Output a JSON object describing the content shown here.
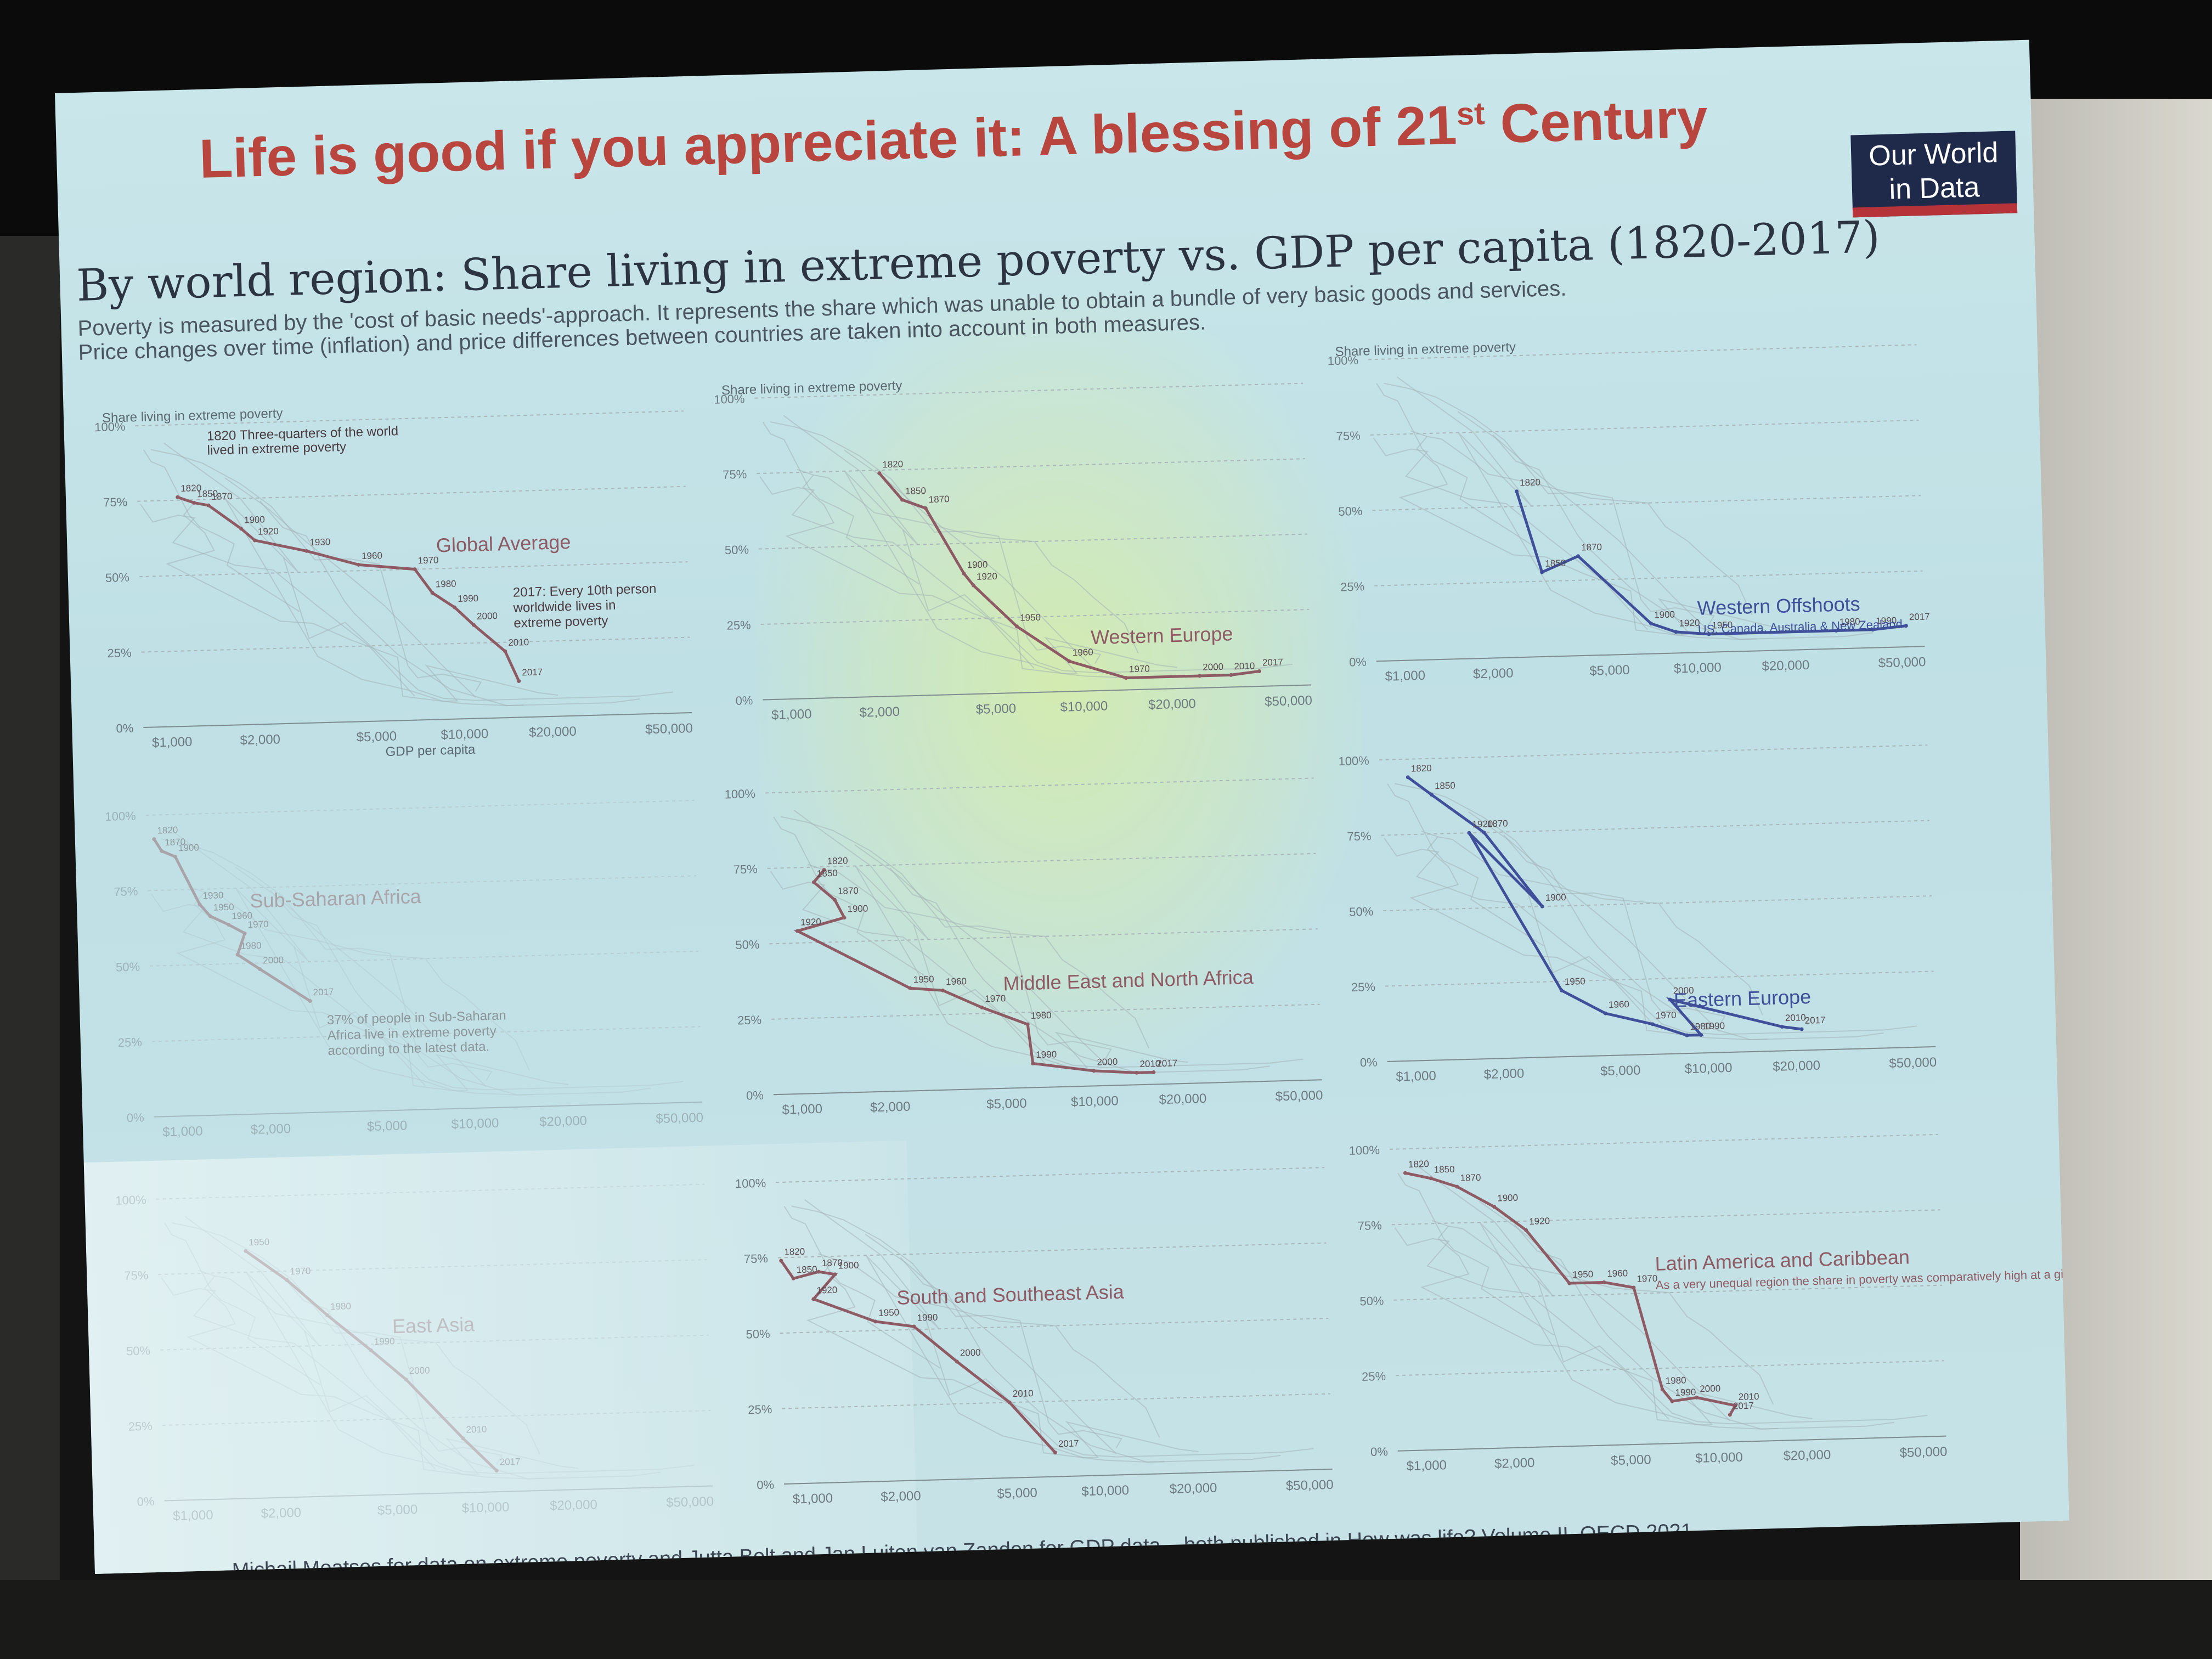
{
  "slide_title": "Life is good if you appreciate it: A blessing of 21",
  "slide_title_sup": "st",
  "slide_title_end": " Century",
  "logo_line1": "Our World",
  "logo_line2": "in Data",
  "chart_title": "By world region: Share living in extreme poverty vs. GDP per capita (1820-2017)",
  "subtitle_line1": "Poverty is measured by the 'cost of basic needs'-approach. It represents the share which was unable to obtain a bundle of very basic goods and services.",
  "subtitle_line2": "Price changes over time (inflation) and price differences between countries are taken into account in both measures.",
  "footer": "Michail Moatsos for data on extreme poverty and Jutta Bolt and Jan Luiten van Zanden for GDP data – both published in How was life? Volume II, OECD 2021.",
  "colors": {
    "title_red": "#b8463f",
    "line": "#8e5a63",
    "blue_line": "#3f4f9a",
    "axis": "#8a9499"
  },
  "chart_data": [
    {
      "type": "line",
      "region": "Global Average",
      "y_axis_title": "Share living in extreme poverty",
      "xlabel": "GDP per capita",
      "xscale": "log",
      "xlim": [
        800,
        60000
      ],
      "ylim": [
        0,
        100
      ],
      "y_ticks": [
        "0%",
        "25%",
        "50%",
        "75%",
        "100%"
      ],
      "x_ticks": [
        "$1,000",
        "$2,000",
        "$5,000",
        "$10,000",
        "$20,000",
        "$50,000"
      ],
      "annotations": [
        "1820 Three-quarters of the world",
        "lived in extreme poverty",
        "2017: Every 10th person",
        "worldwide lives in",
        "extreme poverty"
      ],
      "points": [
        {
          "year": "1820",
          "x": 1100,
          "y": 76
        },
        {
          "year": "1850",
          "x": 1250,
          "y": 74
        },
        {
          "year": "1870",
          "x": 1400,
          "y": 73
        },
        {
          "year": "1900",
          "x": 1800,
          "y": 65
        },
        {
          "year": "1920",
          "x": 2000,
          "y": 61
        },
        {
          "year": "1930",
          "x": 3000,
          "y": 57
        },
        {
          "year": "1960",
          "x": 4500,
          "y": 52
        },
        {
          "year": "1970",
          "x": 7000,
          "y": 50
        },
        {
          "year": "1980",
          "x": 8000,
          "y": 42
        },
        {
          "year": "1990",
          "x": 9500,
          "y": 37
        },
        {
          "year": "2000",
          "x": 11000,
          "y": 31
        },
        {
          "year": "2010",
          "x": 14000,
          "y": 22
        },
        {
          "year": "2017",
          "x": 15500,
          "y": 12
        }
      ]
    },
    {
      "type": "line",
      "region": "Western Europe",
      "y_axis_title": "Share living in extreme poverty",
      "xscale": "log",
      "xlim": [
        800,
        60000
      ],
      "ylim": [
        0,
        100
      ],
      "y_ticks": [
        "0%",
        "25%",
        "50%",
        "75%",
        "100%"
      ],
      "x_ticks": [
        "$1,000",
        "$2,000",
        "$5,000",
        "$10,000",
        "$20,000",
        "$50,000"
      ],
      "points": [
        {
          "year": "1820",
          "x": 2100,
          "y": 74
        },
        {
          "year": "1850",
          "x": 2500,
          "y": 65
        },
        {
          "year": "1870",
          "x": 3000,
          "y": 62
        },
        {
          "year": "1900",
          "x": 4000,
          "y": 40
        },
        {
          "year": "1920",
          "x": 4300,
          "y": 36
        },
        {
          "year": "1950",
          "x": 6000,
          "y": 22
        },
        {
          "year": "1960",
          "x": 9000,
          "y": 10
        },
        {
          "year": "1970",
          "x": 14000,
          "y": 4
        },
        {
          "year": "2000",
          "x": 25000,
          "y": 4
        },
        {
          "year": "2010",
          "x": 32000,
          "y": 4
        },
        {
          "year": "2017",
          "x": 40000,
          "y": 5
        }
      ]
    },
    {
      "type": "line",
      "region": "Western Offshoots",
      "region_note": "US, Canada, Australia & New Zealand",
      "y_axis_title": "Share living in extreme poverty",
      "xscale": "log",
      "xlim": [
        800,
        60000
      ],
      "ylim": [
        0,
        100
      ],
      "y_ticks": [
        "0%",
        "25%",
        "50%",
        "75%",
        "100%"
      ],
      "x_ticks": [
        "$1,000",
        "$2,000",
        "$5,000",
        "$10,000",
        "$20,000",
        "$50,000"
      ],
      "points": [
        {
          "year": "1820",
          "x": 2500,
          "y": 55
        },
        {
          "year": "1850",
          "x": 3000,
          "y": 28
        },
        {
          "year": "1870",
          "x": 4000,
          "y": 33
        },
        {
          "year": "1900",
          "x": 7000,
          "y": 10
        },
        {
          "year": "1920",
          "x": 8500,
          "y": 7
        },
        {
          "year": "1950",
          "x": 11000,
          "y": 6
        },
        {
          "year": "1980",
          "x": 30000,
          "y": 6
        },
        {
          "year": "1990",
          "x": 40000,
          "y": 6
        },
        {
          "year": "2017",
          "x": 52000,
          "y": 7
        }
      ]
    },
    {
      "type": "line",
      "region": "Sub-Saharan Africa",
      "xscale": "log",
      "xlim": [
        800,
        60000
      ],
      "ylim": [
        0,
        100
      ],
      "y_ticks": [
        "0%",
        "25%",
        "50%",
        "75%",
        "100%"
      ],
      "x_ticks": [
        "$1,000",
        "$2,000",
        "$5,000",
        "$10,000",
        "$20,000",
        "$50,000"
      ],
      "annotations": [
        "37% of people in Sub-Saharan",
        "Africa live in extreme poverty",
        "according to the latest data."
      ],
      "points": [
        {
          "year": "1820",
          "x": 850,
          "y": 92
        },
        {
          "year": "1870",
          "x": 900,
          "y": 88
        },
        {
          "year": "1900",
          "x": 1000,
          "y": 86
        },
        {
          "year": "1930",
          "x": 1200,
          "y": 70
        },
        {
          "year": "1950",
          "x": 1300,
          "y": 66
        },
        {
          "year": "1960",
          "x": 1500,
          "y": 63
        },
        {
          "year": "1970",
          "x": 1700,
          "y": 60
        },
        {
          "year": "1980",
          "x": 1600,
          "y": 53
        },
        {
          "year": "2000",
          "x": 1900,
          "y": 48
        },
        {
          "year": "2017",
          "x": 2800,
          "y": 37
        }
      ]
    },
    {
      "type": "line",
      "region": "Middle East and North Africa",
      "xscale": "log",
      "xlim": [
        800,
        60000
      ],
      "ylim": [
        0,
        100
      ],
      "y_ticks": [
        "0%",
        "25%",
        "50%",
        "75%",
        "100%"
      ],
      "x_ticks": [
        "$1,000",
        "$2,000",
        "$5,000",
        "$10,000",
        "$20,000",
        "$50,000"
      ],
      "points": [
        {
          "year": "1820",
          "x": 1250,
          "y": 74
        },
        {
          "year": "1850",
          "x": 1150,
          "y": 70
        },
        {
          "year": "1870",
          "x": 1350,
          "y": 64
        },
        {
          "year": "1900",
          "x": 1450,
          "y": 58
        },
        {
          "year": "1920",
          "x": 1000,
          "y": 54
        },
        {
          "year": "1950",
          "x": 2400,
          "y": 34
        },
        {
          "year": "1960",
          "x": 3100,
          "y": 33
        },
        {
          "year": "1970",
          "x": 4200,
          "y": 27
        },
        {
          "year": "1980",
          "x": 6000,
          "y": 21
        },
        {
          "year": "1990",
          "x": 6200,
          "y": 8
        },
        {
          "year": "2000",
          "x": 10000,
          "y": 5
        },
        {
          "year": "2010",
          "x": 14000,
          "y": 4
        },
        {
          "year": "2017",
          "x": 16000,
          "y": 4
        }
      ]
    },
    {
      "type": "line",
      "region": "Eastern Europe",
      "xscale": "log",
      "xlim": [
        800,
        60000
      ],
      "ylim": [
        0,
        100
      ],
      "y_ticks": [
        "0%",
        "25%",
        "50%",
        "75%",
        "100%"
      ],
      "x_ticks": [
        "$1,000",
        "$2,000",
        "$5,000",
        "$10,000",
        "$20,000",
        "$50,000"
      ],
      "points": [
        {
          "year": "1820",
          "x": 1000,
          "y": 94
        },
        {
          "year": "1850",
          "x": 1200,
          "y": 88
        },
        {
          "year": "1870",
          "x": 1800,
          "y": 75
        },
        {
          "year": "1900",
          "x": 2800,
          "y": 50
        },
        {
          "year": "1920",
          "x": 1600,
          "y": 75
        },
        {
          "year": "1950",
          "x": 3200,
          "y": 22
        },
        {
          "year": "1960",
          "x": 4500,
          "y": 14
        },
        {
          "year": "1970",
          "x": 6500,
          "y": 10
        },
        {
          "year": "1980",
          "x": 8500,
          "y": 6
        },
        {
          "year": "1990",
          "x": 9500,
          "y": 6
        },
        {
          "year": "2000",
          "x": 7500,
          "y": 18
        },
        {
          "year": "2010",
          "x": 18000,
          "y": 8
        },
        {
          "year": "2017",
          "x": 21000,
          "y": 7
        }
      ]
    },
    {
      "type": "line",
      "region": "East Asia",
      "xscale": "log",
      "xlim": [
        800,
        60000
      ],
      "ylim": [
        0,
        100
      ],
      "y_ticks": [
        "0%",
        "25%",
        "50%",
        "75%",
        "100%"
      ],
      "x_ticks": [
        "$1,000",
        "$2,000",
        "$5,000",
        "$10,000",
        "$20,000",
        "$50,000"
      ],
      "points": [
        {
          "year": "1950",
          "x": 1600,
          "y": 82
        },
        {
          "year": "1970",
          "x": 2200,
          "y": 72
        },
        {
          "year": "1980",
          "x": 3000,
          "y": 60
        },
        {
          "year": "1990",
          "x": 4200,
          "y": 48
        },
        {
          "year": "2000",
          "x": 5500,
          "y": 38
        },
        {
          "year": "2010",
          "x": 8500,
          "y": 18
        },
        {
          "year": "2017",
          "x": 11000,
          "y": 7
        }
      ]
    },
    {
      "type": "line",
      "region": "South and Southeast Asia",
      "xscale": "log",
      "xlim": [
        800,
        60000
      ],
      "ylim": [
        0,
        100
      ],
      "y_ticks": [
        "0%",
        "25%",
        "50%",
        "75%",
        "100%"
      ],
      "x_ticks": [
        "$1,000",
        "$2,000",
        "$5,000",
        "$10,000",
        "$20,000",
        "$50,000"
      ],
      "points": [
        {
          "year": "1820",
          "x": 820,
          "y": 74
        },
        {
          "year": "1850",
          "x": 900,
          "y": 68
        },
        {
          "year": "1870",
          "x": 1100,
          "y": 70
        },
        {
          "year": "1900",
          "x": 1250,
          "y": 69
        },
        {
          "year": "1920",
          "x": 1050,
          "y": 61
        },
        {
          "year": "1950",
          "x": 1700,
          "y": 53
        },
        {
          "year": "1990",
          "x": 2300,
          "y": 51
        },
        {
          "year": "2000",
          "x": 3200,
          "y": 39
        },
        {
          "year": "2010",
          "x": 4800,
          "y": 25
        },
        {
          "year": "2017",
          "x": 6800,
          "y": 8
        }
      ]
    },
    {
      "type": "line",
      "region": "Latin America and Caribbean",
      "region_note": "As a very unequal region the share in poverty was comparatively high at a given level of average income.",
      "xscale": "log",
      "xlim": [
        800,
        60000
      ],
      "ylim": [
        0,
        100
      ],
      "y_ticks": [
        "0%",
        "25%",
        "50%",
        "75%",
        "100%"
      ],
      "x_ticks": [
        "$1,000",
        "$2,000",
        "$5,000",
        "$10,000",
        "$20,000",
        "$50,000"
      ],
      "points": [
        {
          "year": "1820",
          "x": 900,
          "y": 92
        },
        {
          "year": "1850",
          "x": 1100,
          "y": 90
        },
        {
          "year": "1870",
          "x": 1350,
          "y": 87
        },
        {
          "year": "1900",
          "x": 1800,
          "y": 80
        },
        {
          "year": "1920",
          "x": 2300,
          "y": 72
        },
        {
          "year": "1950",
          "x": 3200,
          "y": 54
        },
        {
          "year": "1960",
          "x": 4200,
          "y": 54
        },
        {
          "year": "1970",
          "x": 5300,
          "y": 52
        },
        {
          "year": "1980",
          "x": 6500,
          "y": 18
        },
        {
          "year": "1990",
          "x": 7000,
          "y": 14
        },
        {
          "year": "2000",
          "x": 8500,
          "y": 15
        },
        {
          "year": "2010",
          "x": 11500,
          "y": 12
        },
        {
          "year": "2017",
          "x": 11000,
          "y": 9
        }
      ]
    }
  ]
}
